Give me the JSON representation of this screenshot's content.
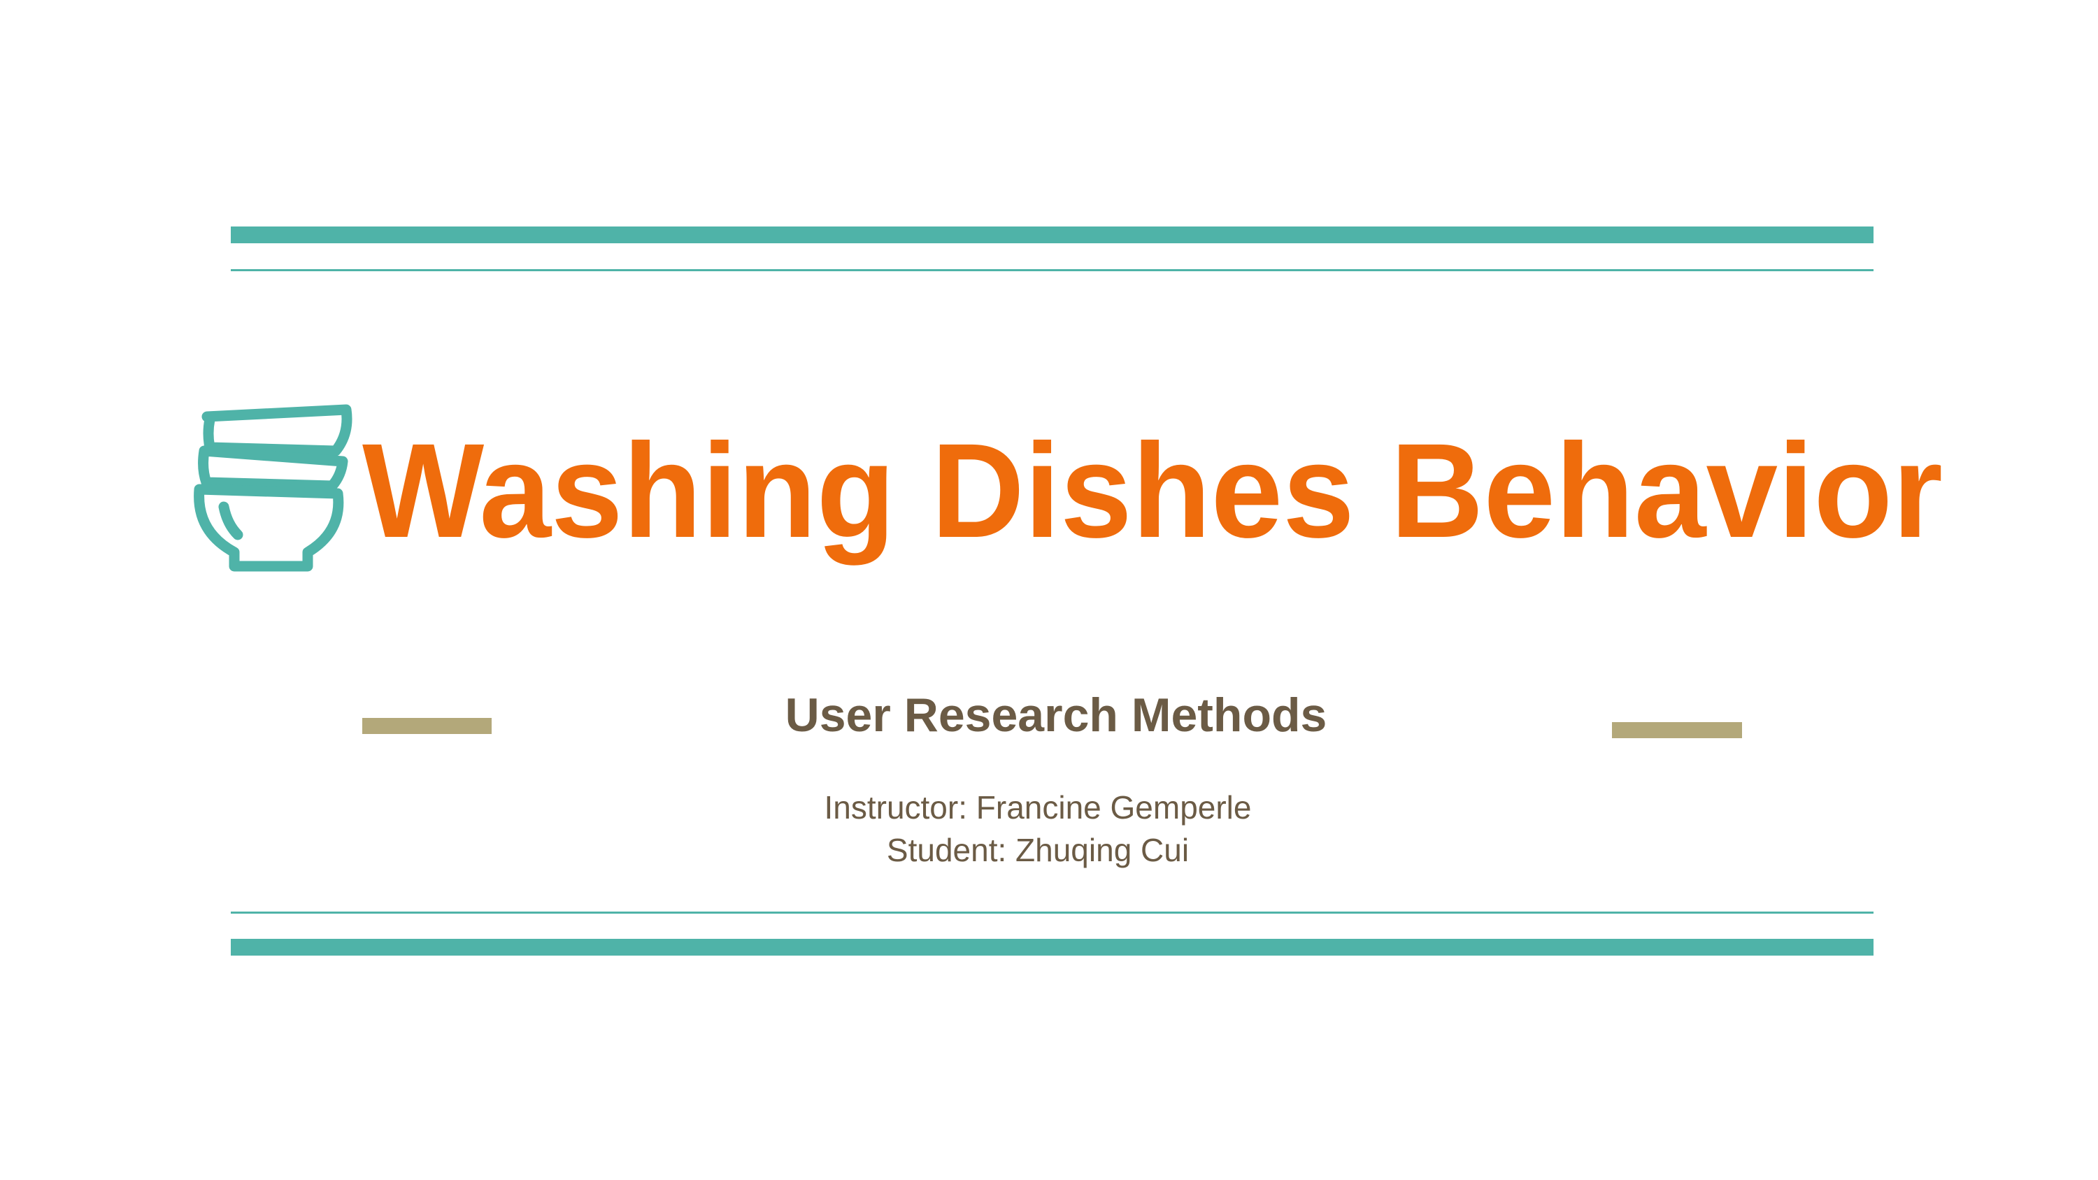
{
  "slide": {
    "title": "Washing Dishes Behavior",
    "subtitle": "User Research Methods",
    "lines": [
      "Instructor: Francine Gemperle",
      "Student: Zhuqing Cui"
    ]
  }
}
